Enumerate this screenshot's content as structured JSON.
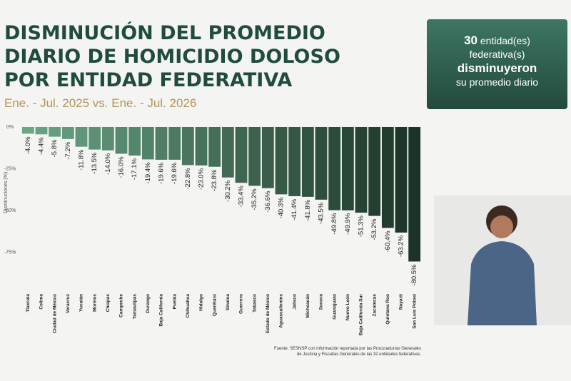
{
  "chart_data": {
    "type": "bar",
    "title_lines": [
      "DISMINUCIÓN DEL PROMEDIO",
      "DIARIO DE HOMICIDIO DOLOSO",
      "POR ENTIDAD FEDERATIVA"
    ],
    "subtitle": "Ene. - Jul. 2025 vs. Ene. - Jul. 2026",
    "y_label": "Disminuciones (%)",
    "categories": [
      "Tlaxcala",
      "Colima",
      "Ciudad de México",
      "Veracruz",
      "Yucatán",
      "Morelos",
      "Chiapas",
      "Campeche",
      "Tamaulipas",
      "Durango",
      "Baja California",
      "Puebla",
      "Chihuahua",
      "Hidalgo",
      "Querétaro",
      "Sinaloa",
      "Guerrero",
      "Tabasco",
      "Estado de México",
      "Aguascalientes",
      "Jalisco",
      "Michoacán",
      "Sonora",
      "Guanajuato",
      "Nuevo León",
      "Baja California Sur",
      "Zacatecas",
      "Quintana Roo",
      "Nayarit",
      "San Luis Potosí"
    ],
    "values": [
      -4.0,
      -4.4,
      -5.8,
      -7.2,
      -11.8,
      -13.5,
      -14.0,
      -16.0,
      -17.1,
      -19.4,
      -19.6,
      -19.6,
      -22.8,
      -23.0,
      -23.8,
      -30.2,
      -33.4,
      -35.2,
      -36.6,
      -40.3,
      -41.4,
      -41.8,
      -43.5,
      -49.8,
      -49.9,
      -51.3,
      -53.2,
      -60.4,
      -63.2,
      -80.5
    ],
    "value_labels": [
      "-4.0%",
      "-4.4%",
      "-5.8%",
      "-7.2%",
      "-11.8%",
      "-13.5%",
      "-14.0%",
      "-16.0%",
      "-17.1%",
      "-19.4%",
      "-19.6%",
      "-19.6%",
      "-22.8%",
      "-23.0%",
      "-23.8%",
      "-30.2%",
      "-33.4%",
      "-35.2%",
      "-36.6%",
      "-40.3%",
      "-41.4%",
      "-41.8%",
      "-43.5%",
      "-49.8%",
      "-49.9%",
      "-51.3%",
      "-53.2%",
      "-60.4%",
      "-63.2%",
      "-80.5%"
    ],
    "ylim": [
      -82,
      0
    ],
    "yticks": [
      {
        "value": 0,
        "label": "0%"
      },
      {
        "value": -25,
        "label": "-25%"
      },
      {
        "value": -50,
        "label": "-50%"
      },
      {
        "value": -75,
        "label": "-75%"
      }
    ],
    "gradient": [
      "#6aa585",
      "#1c3327"
    ],
    "source_lines": [
      "Fuente: SESNSP con información reportada por las Procuradurías Generales",
      "de Justicia y Fiscalías Generales de las 32 entidades federativas."
    ],
    "callout": {
      "number": "30",
      "lines": [
        "entidad(es)",
        "federativa(s)",
        "disminuyeron",
        "su promedio diario"
      ]
    }
  }
}
